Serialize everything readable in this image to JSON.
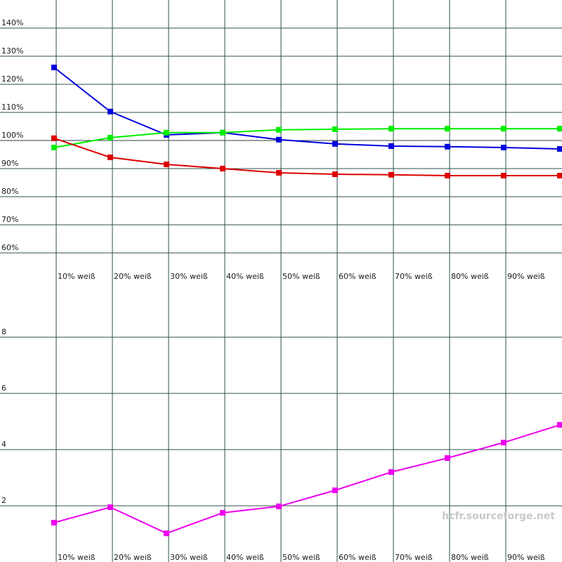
{
  "chart_data": [
    {
      "type": "line",
      "categories": [
        "10% weiß",
        "20% weiß",
        "30% weiß",
        "40% weiß",
        "50% weiß",
        "60% weiß",
        "70% weiß",
        "80% weiß",
        "90% weiß",
        null
      ],
      "ylim": [
        50,
        150
      ],
      "yticks": [
        {
          "value": 60,
          "label": "60%"
        },
        {
          "value": 70,
          "label": "70%"
        },
        {
          "value": 80,
          "label": "80%"
        },
        {
          "value": 90,
          "label": "90%"
        },
        {
          "value": 100,
          "label": "100%"
        },
        {
          "value": 110,
          "label": "110%"
        },
        {
          "value": 120,
          "label": "120%"
        },
        {
          "value": 130,
          "label": "130%"
        },
        {
          "value": 140,
          "label": "140%"
        }
      ],
      "grid": true,
      "reference_line": 100,
      "series": [
        {
          "color": "#0000dd",
          "values": [
            126,
            110.3,
            102,
            102.8,
            100.3,
            98.8,
            98,
            97.8,
            97.5,
            97
          ]
        },
        {
          "color": "#00ee00",
          "values": [
            97.5,
            101,
            102.8,
            102.8,
            103.8,
            104,
            104.2,
            104.2,
            104.2,
            104.2
          ]
        },
        {
          "color": "#dd0000",
          "values": [
            100.8,
            94,
            91.5,
            90,
            88.5,
            88,
            87.8,
            87.5,
            87.5,
            87.5
          ]
        }
      ]
    },
    {
      "type": "line",
      "categories": [
        "10% weiß",
        "20% weiß",
        "30% weiß",
        "40% weiß",
        "50% weiß",
        "60% weiß",
        "70% weiß",
        "80% weiß",
        "90% weiß",
        null
      ],
      "ylim": [
        0,
        10
      ],
      "yticks": [
        2,
        4,
        6,
        8
      ],
      "grid": true,
      "series": [
        {
          "color": "#ee00ee",
          "values": [
            1.4,
            1.95,
            1.02,
            1.75,
            1.98,
            2.55,
            3.2,
            3.7,
            4.25,
            4.88
          ]
        }
      ]
    }
  ],
  "watermark": "hcfr.sourceforge.net"
}
